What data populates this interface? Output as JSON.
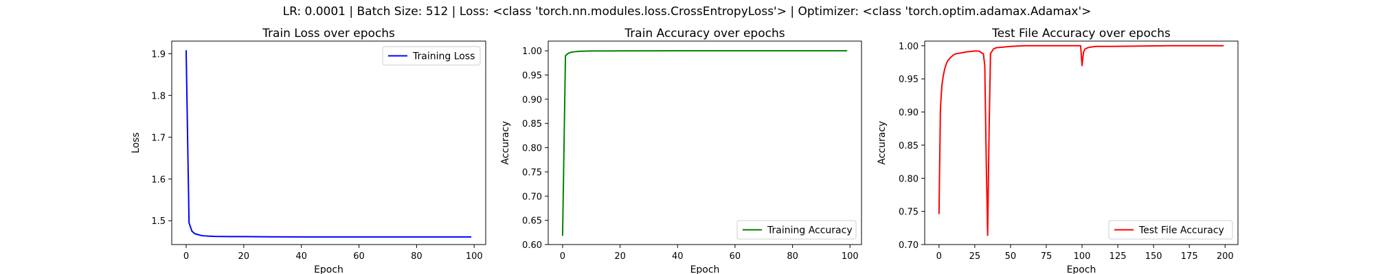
{
  "suptitle": "LR: 0.0001 | Batch Size: 512 | Loss: <class 'torch.nn.modules.loss.CrossEntropyLoss'> | Optimizer: <class 'torch.optim.adamax.Adamax'>",
  "chart_data": [
    {
      "type": "line",
      "title": "Train Loss over epochs",
      "xlabel": "Epoch",
      "ylabel": "Loss",
      "xlim": [
        -5,
        104
      ],
      "ylim": [
        1.443,
        1.93
      ],
      "xticks": [
        0,
        20,
        40,
        60,
        80,
        100
      ],
      "yticks": [
        1.5,
        1.6,
        1.7,
        1.8,
        1.9
      ],
      "grid": false,
      "legend_position": "upper-right",
      "series": [
        {
          "name": "Training Loss",
          "color": "#0000ff",
          "x": [
            0,
            1,
            2,
            3,
            4,
            5,
            6,
            8,
            10,
            15,
            20,
            30,
            40,
            60,
            80,
            99
          ],
          "y": [
            1.908,
            1.495,
            1.475,
            1.469,
            1.467,
            1.465,
            1.464,
            1.463,
            1.4625,
            1.462,
            1.462,
            1.4615,
            1.4612,
            1.4612,
            1.4612,
            1.4612
          ]
        }
      ]
    },
    {
      "type": "line",
      "title": "Train Accuracy over epochs",
      "xlabel": "Epoch",
      "ylabel": "Accuracy",
      "xlim": [
        -5,
        104
      ],
      "ylim": [
        0.6,
        1.02
      ],
      "xticks": [
        0,
        20,
        40,
        60,
        80,
        100
      ],
      "yticks": [
        0.6,
        0.65,
        0.7,
        0.75,
        0.8,
        0.85,
        0.9,
        0.95,
        1.0
      ],
      "grid": false,
      "legend_position": "lower-right",
      "series": [
        {
          "name": "Training Accuracy",
          "color": "#008000",
          "x": [
            0,
            1,
            2,
            3,
            4,
            6,
            8,
            10,
            20,
            40,
            60,
            80,
            99
          ],
          "y": [
            0.618,
            0.99,
            0.995,
            0.997,
            0.998,
            0.999,
            0.9993,
            0.9996,
            0.9998,
            1.0,
            1.0,
            1.0,
            1.0
          ]
        }
      ]
    },
    {
      "type": "line",
      "title": "Test File Accuracy over epochs",
      "xlabel": "Epoch",
      "ylabel": "Accuracy",
      "xlim": [
        -10,
        209
      ],
      "ylim": [
        0.7,
        1.007
      ],
      "xticks": [
        0,
        25,
        50,
        75,
        100,
        125,
        150,
        175,
        200
      ],
      "yticks": [
        0.7,
        0.75,
        0.8,
        0.85,
        0.9,
        0.95,
        1.0
      ],
      "grid": false,
      "legend_position": "lower-right",
      "series": [
        {
          "name": "Test File Accuracy",
          "color": "#ff0000",
          "x": [
            0,
            1,
            2,
            3,
            4,
            5,
            6,
            8,
            10,
            12,
            15,
            20,
            25,
            28,
            30,
            31,
            32,
            33,
            34,
            35,
            36,
            38,
            40,
            45,
            50,
            60,
            70,
            80,
            90,
            99,
            100,
            101,
            102,
            104,
            106,
            110,
            120,
            140,
            160,
            180,
            199
          ],
          "y": [
            0.746,
            0.905,
            0.94,
            0.955,
            0.965,
            0.972,
            0.977,
            0.982,
            0.986,
            0.988,
            0.989,
            0.991,
            0.992,
            0.992,
            0.989,
            0.988,
            0.97,
            0.83,
            0.714,
            0.87,
            0.988,
            0.995,
            0.997,
            0.998,
            0.999,
            1.0,
            1.0,
            1.0,
            1.0,
            1.0,
            0.97,
            0.99,
            0.995,
            0.997,
            0.998,
            0.999,
            0.999,
            0.9995,
            1.0,
            1.0,
            1.0
          ]
        }
      ]
    }
  ]
}
